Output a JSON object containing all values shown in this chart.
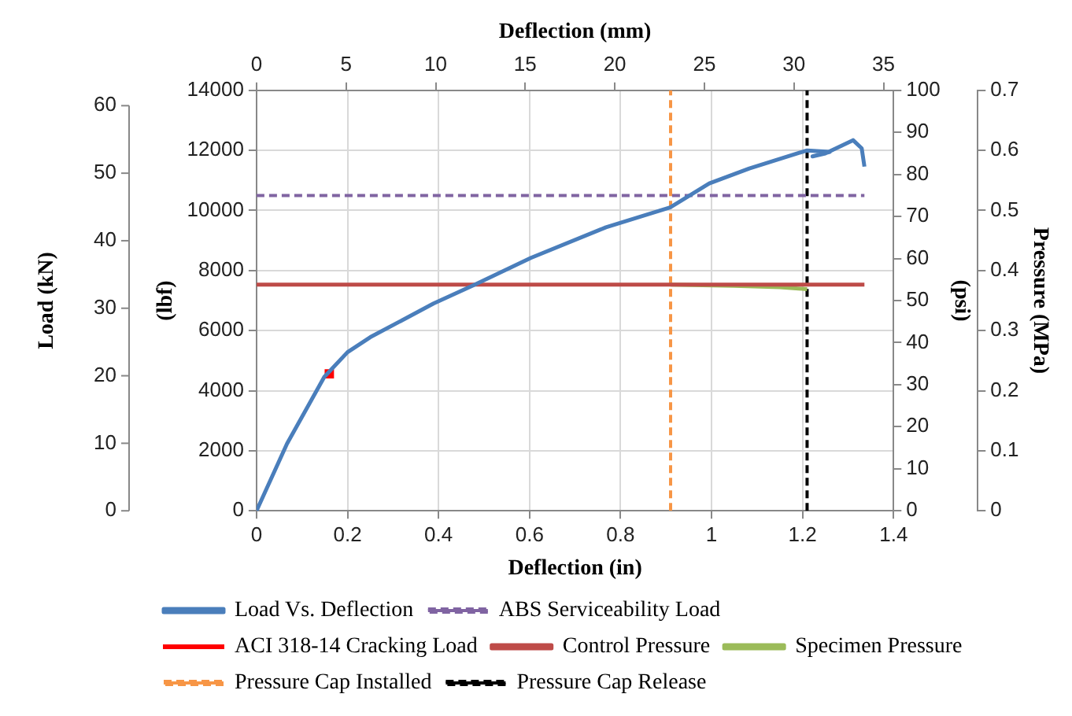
{
  "chart_data": {
    "type": "line",
    "xlabel": "Deflection (in)",
    "x2label": "Deflection (mm)",
    "ylabel": "(lbf)",
    "y2label": "(psi)",
    "y3label": "Pressure (MPa)",
    "xlim": [
      0,
      1.4
    ],
    "xticks": [
      0,
      0.2,
      0.4,
      0.6,
      0.8,
      1,
      1.2,
      1.4
    ],
    "x2lim": [
      0,
      35.56
    ],
    "x2ticks": [
      0,
      5,
      10,
      15,
      20,
      25,
      30,
      35
    ],
    "ylim": [
      0,
      14000
    ],
    "yticks": [
      0,
      2000,
      4000,
      6000,
      8000,
      10000,
      12000,
      14000
    ],
    "y2lim": [
      0,
      100
    ],
    "y2ticks": [
      0,
      10,
      20,
      30,
      40,
      50,
      60,
      70,
      80,
      90,
      100
    ],
    "y3lim": [
      0,
      0.7
    ],
    "y3ticks": [
      0,
      0.1,
      0.2,
      0.3,
      0.4,
      0.5,
      0.6,
      0.7
    ],
    "annotations": [
      "Load (kN)",
      "0",
      "10",
      "20",
      "30",
      "40",
      "50",
      "60"
    ],
    "grid": true,
    "legend": "bottom",
    "marker": "none",
    "series": [
      {
        "name": "Load Vs. Deflection",
        "color": "#4a7ebb",
        "x": [
          0,
          0.067,
          0.149,
          0.2,
          0.25,
          0.389,
          0.477,
          0.603,
          0.768,
          0.909,
          0.995,
          1.083,
          1.21,
          1.26,
          1.222,
          1.25,
          1.311,
          1.33,
          1.336
        ],
        "values": [
          0,
          2230,
          4460,
          5280,
          5780,
          6900,
          7510,
          8420,
          9440,
          10100,
          10900,
          11400,
          12000,
          11950,
          11800,
          11900,
          12340,
          12070,
          11460
        ]
      },
      {
        "name": "ABS Serviceability Load",
        "color": "#8064a2",
        "line_style": "dashed",
        "x": [
          0,
          1.336
        ],
        "values": [
          10500,
          10500
        ]
      },
      {
        "name": "ACI 318-14 Cracking Load",
        "type": "scatter",
        "color": "#ff0000",
        "marker": "square",
        "x": [
          0.16
        ],
        "values": [
          4560
        ]
      },
      {
        "name": "Control Pressure",
        "axis": "y2",
        "color": "#be4b48",
        "x": [
          0,
          1.336
        ],
        "values": [
          53.8,
          53.8
        ]
      },
      {
        "name": "Specimen Pressure",
        "axis": "y2",
        "color": "#9bbb59",
        "x": [
          0.91,
          1.05,
          1.15,
          1.21
        ],
        "values": [
          53.8,
          53.5,
          53.2,
          52.7
        ]
      },
      {
        "name": "Pressure Cap Installed",
        "color": "#f79646",
        "line_style": "dashed",
        "x": [
          0.91,
          0.91
        ],
        "values": [
          0,
          14000
        ]
      },
      {
        "name": "Pressure Cap Release",
        "color": "#000000",
        "line_style": "dashed",
        "x": [
          1.21,
          1.21
        ],
        "values": [
          0,
          14000
        ]
      }
    ]
  }
}
